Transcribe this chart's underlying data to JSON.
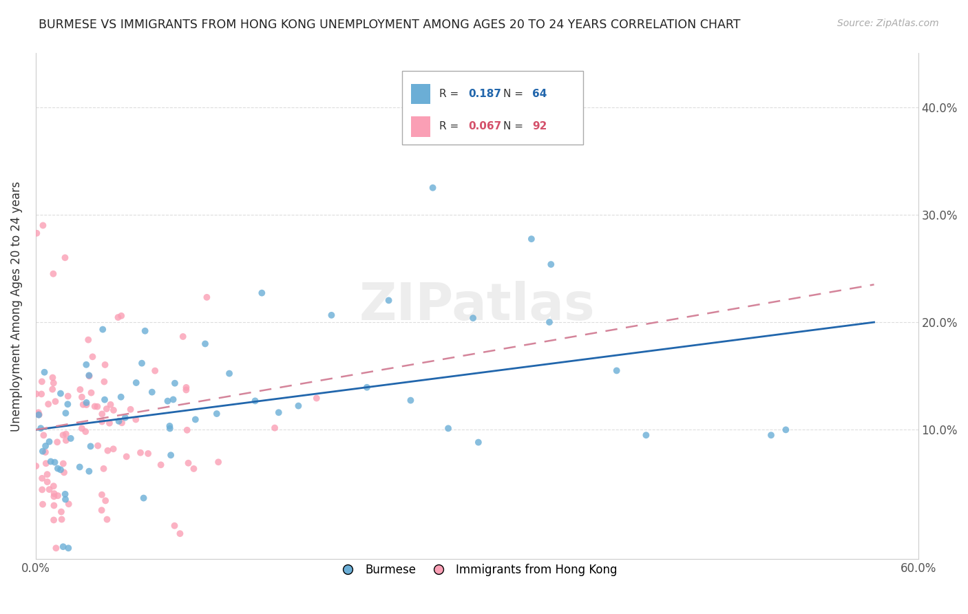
{
  "title": "BURMESE VS IMMIGRANTS FROM HONG KONG UNEMPLOYMENT AMONG AGES 20 TO 24 YEARS CORRELATION CHART",
  "source": "Source: ZipAtlas.com",
  "ylabel": "Unemployment Among Ages 20 to 24 years",
  "xlim": [
    0.0,
    0.6
  ],
  "ylim": [
    -0.02,
    0.45
  ],
  "ytick_positions": [
    0.1,
    0.2,
    0.3,
    0.4
  ],
  "ytick_labels": [
    "10.0%",
    "20.0%",
    "30.0%",
    "40.0%"
  ],
  "burmese_color": "#6baed6",
  "hk_color": "#fa9fb5",
  "burmese_R": 0.187,
  "burmese_N": 64,
  "hk_R": 0.067,
  "hk_N": 92,
  "burmese_line_color": "#2166ac",
  "hk_line_color": "#d4849a",
  "watermark": "ZIPatlas"
}
